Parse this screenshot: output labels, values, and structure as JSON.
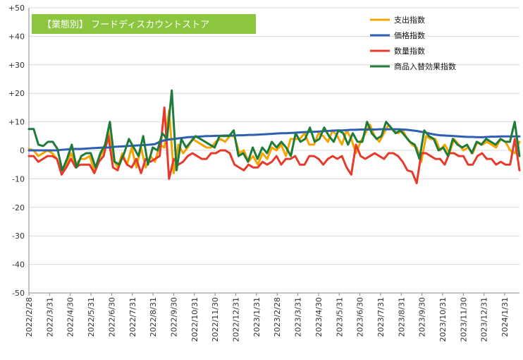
{
  "chart_data": {
    "type": "line",
    "title": "【業態別】 フードディスカウントストア",
    "title_bg_color": "#8cc63f",
    "ylim": [
      -50,
      50
    ],
    "y_ticks": [
      "+50",
      "+40",
      "+30",
      "+20",
      "+10",
      "0",
      "-10",
      "-20",
      "-30",
      "-40",
      "-50"
    ],
    "x_tick_labels": [
      "2022/2/28",
      "2022/3/31",
      "2022/4/30",
      "2022/5/31",
      "2022/6/30",
      "2022/7/31",
      "2022/8/31",
      "2022/9/30",
      "2022/10/31",
      "2022/11/30",
      "2022/12/31",
      "2023/1/31",
      "2023/2/28",
      "2023/3/31",
      "2023/4/30",
      "2023/5/31",
      "2023/6/30",
      "2023/7/31",
      "2023/8/31",
      "2023/9/30",
      "2023/10/31",
      "2023/11/30",
      "2023/12/31",
      "2024/1/31"
    ],
    "grid": "horizontal",
    "legend_position": "top-right",
    "series": [
      {
        "name": "支出指数",
        "color": "#f5a500",
        "values": [
          0.5,
          0,
          -2,
          -1,
          0,
          -1,
          -3,
          -7,
          -5,
          -1,
          -5,
          -3,
          -3,
          -2,
          -7,
          -3,
          0,
          7,
          -3,
          -6,
          -1,
          -5,
          1,
          -6,
          1,
          -6,
          -2,
          -4,
          2,
          1,
          14,
          -8,
          2,
          -1,
          1,
          4,
          3,
          2,
          1,
          1,
          3,
          4,
          3,
          5,
          5,
          -1,
          0,
          -4,
          -2,
          -5,
          -1,
          -3,
          1,
          0,
          2,
          -2,
          4,
          4,
          4,
          6,
          2,
          2,
          6,
          5,
          3,
          7,
          5,
          2,
          7,
          4,
          -1,
          3,
          6,
          9,
          5,
          3,
          6,
          9,
          7,
          6,
          7,
          4,
          2,
          1,
          -4,
          5,
          4,
          4,
          0,
          2,
          -1,
          4,
          2,
          0,
          1,
          -1,
          3,
          2,
          3,
          2,
          1,
          4,
          3,
          0,
          -1,
          3
        ]
      },
      {
        "name": "価格指数",
        "color": "#2e5fb5",
        "values": [
          0,
          0,
          0,
          0,
          0,
          0,
          0,
          0.2,
          0.3,
          0.5,
          0.5,
          0.5,
          0.6,
          0.7,
          0.8,
          0.9,
          1.0,
          1.0,
          1.2,
          1.3,
          1.4,
          1.5,
          1.6,
          1.7,
          1.8,
          1.9,
          2.0,
          2.2,
          3.0,
          3.5,
          3.8,
          4.0,
          4.2,
          4.4,
          4.6,
          4.7,
          4.8,
          4.9,
          5.0,
          5.0,
          5.1,
          5.1,
          5.2,
          5.2,
          5.2,
          5.3,
          5.3,
          5.4,
          5.4,
          5.5,
          5.6,
          5.7,
          5.8,
          5.9,
          6.0,
          6.0,
          6.1,
          6.2,
          6.3,
          6.4,
          6.5,
          6.5,
          6.6,
          6.7,
          6.8,
          6.9,
          7.0,
          7.0,
          7.1,
          7.2,
          7.2,
          7.3,
          7.3,
          7.3,
          7.3,
          7.4,
          7.4,
          7.4,
          7.4,
          7.4,
          7.3,
          7.2,
          7.0,
          6.8,
          6.5,
          6.2,
          5.8,
          5.5,
          5.3,
          5.2,
          5.1,
          5.0,
          4.9,
          4.8,
          4.7,
          4.7,
          4.6,
          4.6,
          4.7,
          4.8,
          4.8,
          4.9,
          4.9,
          4.9,
          4.9,
          4.9
        ]
      },
      {
        "name": "数量指数",
        "color": "#e53b2c",
        "values": [
          -2,
          -2,
          -4,
          -3,
          -2,
          -2,
          -3,
          -8.5,
          -6,
          -3,
          -6,
          -5,
          -5,
          -5,
          -8,
          -4,
          -2,
          5,
          -6,
          -7,
          -2,
          -5,
          -6,
          -3,
          -8,
          -3,
          -4,
          -3,
          -2,
          15,
          -10,
          -3,
          -5,
          -4,
          -2,
          -1,
          -2,
          -3,
          -3,
          -1,
          -1,
          0,
          0,
          -1,
          -5,
          -6,
          -7,
          -5,
          -6,
          -6,
          -4,
          -5,
          -4,
          -2,
          -5,
          -3,
          -3,
          -2,
          -5,
          -5,
          -2,
          -2,
          -3,
          -5,
          -3,
          -2,
          -3,
          -2,
          -6,
          -8.5,
          2,
          -2,
          -3,
          -2,
          -1,
          -2,
          -3,
          -1,
          -1,
          -2,
          -4,
          -7,
          -7.5,
          -11.5,
          -1,
          -1,
          -2,
          -3,
          -3,
          -5,
          -1,
          -1,
          -2,
          -2,
          -5,
          -5,
          -2,
          -1,
          -3,
          -3,
          -5,
          -4,
          -5,
          -5,
          4,
          -7
        ]
      },
      {
        "name": "商品入替効果指数",
        "color": "#1e7b3a",
        "values": [
          7.5,
          7.5,
          2,
          1.5,
          3,
          3,
          0.5,
          -7,
          -3,
          2,
          -6,
          -2,
          -1,
          -1,
          -6,
          -1,
          2,
          10,
          -4,
          -5,
          -1,
          4,
          1,
          -2,
          5,
          -5,
          1,
          0,
          6,
          4,
          21,
          -7,
          4,
          1,
          3,
          5,
          4,
          3,
          2,
          1,
          5,
          5,
          5,
          7,
          -2,
          -1,
          -4,
          1,
          -3,
          1,
          -1,
          3,
          1,
          3,
          1,
          -2,
          6,
          3,
          4,
          8,
          3,
          4,
          8,
          5,
          3,
          7,
          6,
          2,
          6,
          3,
          3,
          10,
          6,
          4,
          5,
          10,
          8,
          6,
          7,
          5,
          3,
          2,
          -3,
          7,
          5,
          4,
          0,
          1,
          -2,
          4,
          2,
          1,
          2,
          -1,
          3,
          2,
          4,
          3,
          2,
          4,
          3,
          3,
          10,
          -2
        ]
      }
    ]
  }
}
